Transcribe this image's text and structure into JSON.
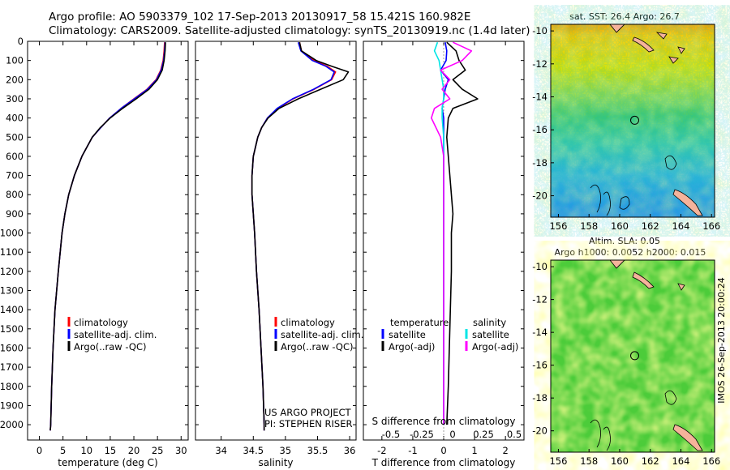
{
  "header": {
    "line1": "Argo profile: AO 5903379_102 17-Sep-2013 20130917_58 15.421S 160.982E",
    "line2": "Climatology: CARS2009. Satellite-adjusted climatology: synTS_20130919.nc (1.4d later)"
  },
  "colors": {
    "climatology": "#ff0000",
    "satellite": "#0000ff",
    "argo": "#000000",
    "s_satellite": "#00e5e5",
    "s_argo": "#ff00ff",
    "land": "#f5b39b"
  },
  "chart_data": [
    {
      "type": "line",
      "title": "",
      "xlabel": "temperature (deg C)",
      "ylabel": "",
      "xlim": [
        -2.5,
        31.5
      ],
      "ylim": [
        2080,
        0
      ],
      "xticks": [
        0,
        5,
        10,
        15,
        20,
        25,
        30
      ],
      "yticks": [
        0,
        100,
        200,
        300,
        400,
        500,
        600,
        700,
        800,
        900,
        1000,
        1100,
        1200,
        1300,
        1400,
        1500,
        1600,
        1700,
        1800,
        1900,
        2000
      ],
      "y": [
        5,
        50,
        100,
        150,
        200,
        250,
        300,
        350,
        400,
        450,
        500,
        600,
        700,
        800,
        900,
        1000,
        1200,
        1400,
        1600,
        1800,
        2000,
        2030
      ],
      "series": [
        {
          "name": "climatology",
          "color": "#ff0000",
          "values": [
            26.5,
            26.4,
            26.2,
            25.7,
            24.7,
            22.8,
            20.0,
            17.3,
            14.9,
            13.0,
            11.2,
            9.0,
            7.4,
            6.2,
            5.4,
            4.8,
            4.0,
            3.3,
            2.9,
            2.6,
            2.4,
            2.3
          ]
        },
        {
          "name": "satellite-adj. clim.",
          "color": "#0000ff",
          "values": [
            26.6,
            26.5,
            26.3,
            25.8,
            24.8,
            22.9,
            20.1,
            17.3,
            14.9,
            13.0,
            11.2,
            9.0,
            7.4,
            6.2,
            5.4,
            4.8,
            4.0,
            3.3,
            2.9,
            2.6,
            2.4,
            2.3
          ]
        },
        {
          "name": "Argo(..raw -QC)",
          "color": "#000000",
          "values": [
            26.7,
            26.6,
            26.4,
            26.0,
            25.0,
            23.2,
            20.5,
            17.6,
            15.0,
            12.9,
            11.2,
            9.0,
            7.4,
            6.2,
            5.4,
            4.8,
            4.0,
            3.3,
            2.9,
            2.6,
            2.4,
            2.3
          ]
        }
      ],
      "legend": [
        "climatology",
        "satellite-adj. clim.",
        "Argo(..raw -QC)"
      ],
      "legend_position": "lower-center"
    },
    {
      "type": "line",
      "title": "",
      "xlabel": "salinity",
      "ylabel": "",
      "xlim": [
        33.6,
        36.1
      ],
      "ylim": [
        2080,
        0
      ],
      "xticks": [
        34,
        34.5,
        35,
        35.5,
        36
      ],
      "y": [
        5,
        50,
        100,
        130,
        160,
        200,
        250,
        300,
        350,
        400,
        450,
        500,
        600,
        700,
        800,
        900,
        1000,
        1200,
        1400,
        1600,
        1800,
        2000,
        2030
      ],
      "series": [
        {
          "name": "climatology",
          "color": "#ff0000",
          "values": [
            35.22,
            35.25,
            35.45,
            35.65,
            35.78,
            35.72,
            35.45,
            35.12,
            34.88,
            34.72,
            34.63,
            34.57,
            34.5,
            34.48,
            34.48,
            34.5,
            34.52,
            34.55,
            34.59,
            34.62,
            34.65,
            34.67,
            34.67
          ]
        },
        {
          "name": "satellite-adj. clim.",
          "color": "#0000ff",
          "values": [
            35.2,
            35.24,
            35.42,
            35.63,
            35.76,
            35.71,
            35.44,
            35.11,
            34.87,
            34.72,
            34.63,
            34.57,
            34.5,
            34.48,
            34.48,
            34.5,
            34.52,
            34.55,
            34.59,
            34.62,
            34.65,
            34.67,
            34.67
          ]
        },
        {
          "name": "Argo(..raw -QC)",
          "color": "#000000",
          "values": [
            35.22,
            35.25,
            35.48,
            35.72,
            35.98,
            35.9,
            35.55,
            35.2,
            34.9,
            34.73,
            34.63,
            34.57,
            34.5,
            34.48,
            34.48,
            34.5,
            34.52,
            34.55,
            34.59,
            34.62,
            34.65,
            34.67,
            34.67
          ]
        }
      ],
      "legend": [
        "climatology",
        "satellite-adj. clim.",
        "Argo(..raw -QC)"
      ],
      "annotation": [
        "US ARGO PROJECT",
        "PI: STEPHEN RISER"
      ]
    },
    {
      "type": "line",
      "title": "",
      "xlabel": "T difference from climatology",
      "xlabel_top": "S difference from climatology",
      "xlim": [
        -2.6,
        2.6
      ],
      "ylim": [
        2080,
        0
      ],
      "xticks": [
        -2,
        -1,
        0,
        1,
        2
      ],
      "xticks_s": [
        "-0.5",
        "-0.25",
        "0",
        "0.25",
        "0.5"
      ],
      "y": [
        5,
        50,
        100,
        150,
        200,
        250,
        300,
        350,
        400,
        500,
        600,
        700,
        800,
        900,
        1000,
        1200,
        1500,
        1800,
        2000
      ],
      "series": [
        {
          "name": "temperature satellite",
          "color": "#0000ff",
          "values": [
            0.05,
            0.1,
            0.08,
            -0.1,
            0.15,
            0.05,
            0.0,
            -0.05,
            0.0,
            0.0,
            0.0,
            0.0,
            0.0,
            0.0,
            0.0,
            0.0,
            0.0,
            0.0,
            0.0
          ]
        },
        {
          "name": "temperature Argo(-adj)",
          "color": "#000000",
          "values": [
            0.1,
            0.4,
            0.5,
            0.7,
            0.3,
            0.6,
            1.1,
            0.3,
            0.15,
            0.1,
            0.15,
            0.2,
            0.25,
            0.3,
            0.25,
            0.25,
            0.2,
            0.15,
            0.1
          ]
        },
        {
          "name": "salinity satellite",
          "color": "#00e5e5",
          "values": [
            -0.2,
            -0.3,
            -0.15,
            -0.1,
            -0.05,
            0.0,
            0.0,
            -0.05,
            -0.05,
            0.0,
            0.0,
            0.0,
            0.0,
            0.0,
            0.0,
            0.0,
            0.0,
            0.0,
            0.0
          ]
        },
        {
          "name": "salinity Argo(-adj)",
          "color": "#ff00ff",
          "values": [
            0.3,
            0.9,
            0.6,
            -0.1,
            0.2,
            -0.05,
            0.2,
            -0.3,
            -0.4,
            -0.1,
            0.0,
            0.0,
            0.0,
            0.0,
            0.0,
            0.0,
            0.0,
            0.0,
            0.0
          ]
        }
      ],
      "legend_headers": [
        "temperature",
        "salinity"
      ],
      "legend": [
        "satellite",
        "Argo(-adj)",
        "satellite",
        "Argo(-adj)"
      ]
    },
    {
      "type": "heatmap",
      "title": "sat. SST: 26.4  Argo: 26.7",
      "xlim": [
        155.5,
        166.2
      ],
      "ylim": [
        -21.3,
        -9.6
      ],
      "xticks": [
        156,
        158,
        160,
        162,
        164,
        166
      ],
      "yticks": [
        -10,
        -12,
        -14,
        -16,
        -18,
        -20
      ],
      "float_position": {
        "lon": 160.982,
        "lat": -15.421
      }
    },
    {
      "type": "heatmap",
      "title": "Altim. SLA: 0.05",
      "subtitle": "Argo h1000: 0.0052 h2000: 0.015",
      "xlim": [
        155.5,
        166.2
      ],
      "ylim": [
        -21.3,
        -9.6
      ],
      "xticks": [
        156,
        158,
        160,
        162,
        164,
        166
      ],
      "yticks": [
        -10,
        -12,
        -14,
        -16,
        -18,
        -20
      ],
      "float_position": {
        "lon": 160.982,
        "lat": -15.421
      }
    }
  ],
  "footer": {
    "side_label": "IMOS 26-Sep-2013 20:00:24"
  }
}
